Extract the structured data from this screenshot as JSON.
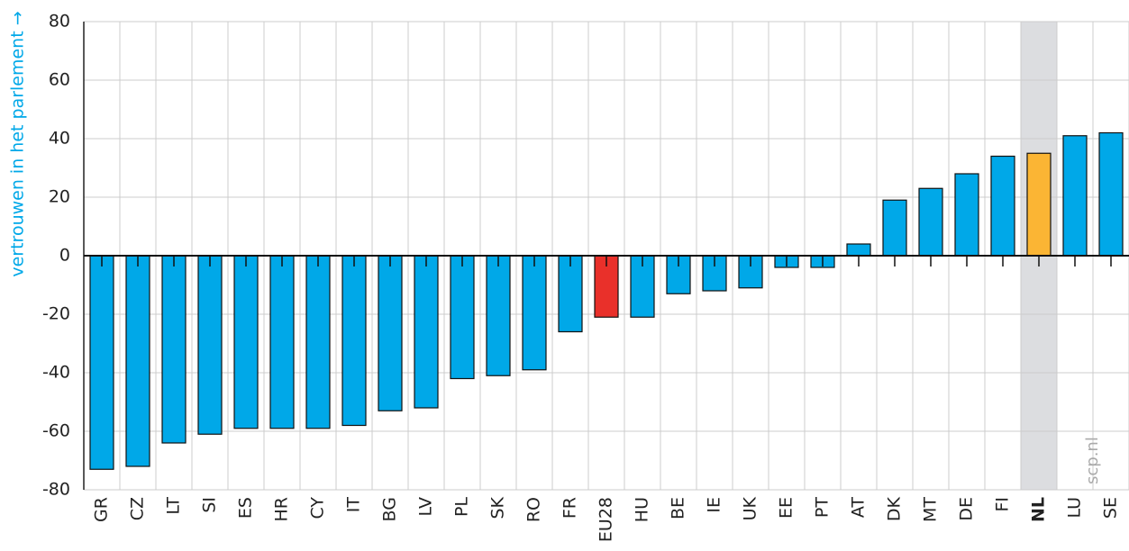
{
  "chart_data": {
    "type": "bar",
    "y_label": "vertrouwen in het parlement →",
    "watermark": "scp.nl",
    "categories": [
      "GR",
      "CZ",
      "LT",
      "SI",
      "ES",
      "HR",
      "CY",
      "IT",
      "BG",
      "LV",
      "PL",
      "SK",
      "RO",
      "FR",
      "EU28",
      "HU",
      "BE",
      "IE",
      "UK",
      "EE",
      "PT",
      "AT",
      "DK",
      "MT",
      "DE",
      "FI",
      "NL",
      "LU",
      "SE"
    ],
    "values": [
      -73,
      -72,
      -64,
      -61,
      -59,
      -59,
      -59,
      -58,
      -53,
      -52,
      -42,
      -41,
      -39,
      -26,
      -21,
      -21,
      -13,
      -12,
      -11,
      -4,
      -4,
      4,
      19,
      23,
      28,
      34,
      35,
      41,
      42
    ],
    "colors": [
      "#00a8e8",
      "#00a8e8",
      "#00a8e8",
      "#00a8e8",
      "#00a8e8",
      "#00a8e8",
      "#00a8e8",
      "#00a8e8",
      "#00a8e8",
      "#00a8e8",
      "#00a8e8",
      "#00a8e8",
      "#00a8e8",
      "#00a8e8",
      "#e9302a",
      "#00a8e8",
      "#00a8e8",
      "#00a8e8",
      "#00a8e8",
      "#00a8e8",
      "#00a8e8",
      "#00a8e8",
      "#00a8e8",
      "#00a8e8",
      "#00a8e8",
      "#00a8e8",
      "#fbb534",
      "#00a8e8",
      "#00a8e8"
    ],
    "highlight": {
      "index": 26,
      "color": "#dcdde0"
    },
    "ylim": [
      -80,
      80
    ],
    "yticks": [
      -80,
      -60,
      -40,
      -20,
      0,
      20,
      40,
      60,
      80
    ],
    "grid": true
  }
}
